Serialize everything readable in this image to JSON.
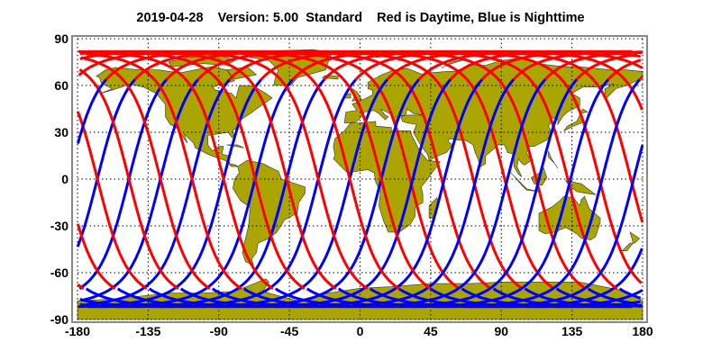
{
  "title": {
    "date": "2019-04-28",
    "version": "Version: 5.00",
    "product": "Standard",
    "legend": "Red is Daytime, Blue is Nighttime"
  },
  "colors": {
    "daytime": "#ff0000",
    "nighttime": "#0000ff",
    "land": "#aaa500",
    "frame": "#888888"
  },
  "axes": {
    "x_ticks": [
      "-180",
      "-135",
      "-90",
      "-45",
      "0",
      "45",
      "90",
      "135",
      "180"
    ],
    "y_ticks": [
      "90",
      "60",
      "30",
      "0",
      "-30",
      "-60",
      "-90"
    ],
    "x_range": [
      -180,
      180
    ],
    "y_range": [
      -90,
      90
    ],
    "grid": "dotted"
  }
}
